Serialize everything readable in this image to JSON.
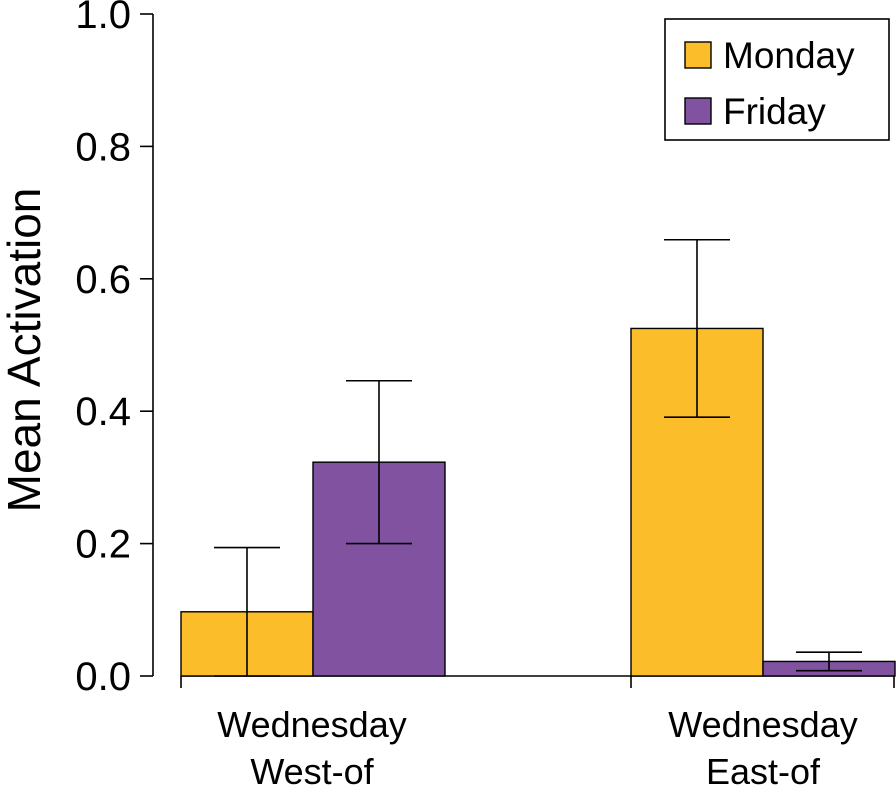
{
  "chart_data": {
    "type": "bar",
    "title": "",
    "xlabel": "",
    "ylabel": "Mean Activation",
    "ylim": [
      0,
      1
    ],
    "yticks": [
      "0.0",
      "0.2",
      "0.4",
      "0.6",
      "0.8",
      "1.0"
    ],
    "categories": [
      {
        "line1": "Wednesday",
        "line2": "West-of"
      },
      {
        "line1": "Wednesday",
        "line2": "East-of"
      }
    ],
    "series": [
      {
        "name": "Monday",
        "color": "#FBBD2A",
        "values": [
          0.097,
          0.525
        ],
        "errors": [
          0.097,
          0.134
        ]
      },
      {
        "name": "Friday",
        "color": "#8152A0",
        "values": [
          0.323,
          0.022
        ],
        "errors": [
          0.123,
          0.014
        ]
      }
    ],
    "legend_position": "top-right",
    "grid": false
  }
}
